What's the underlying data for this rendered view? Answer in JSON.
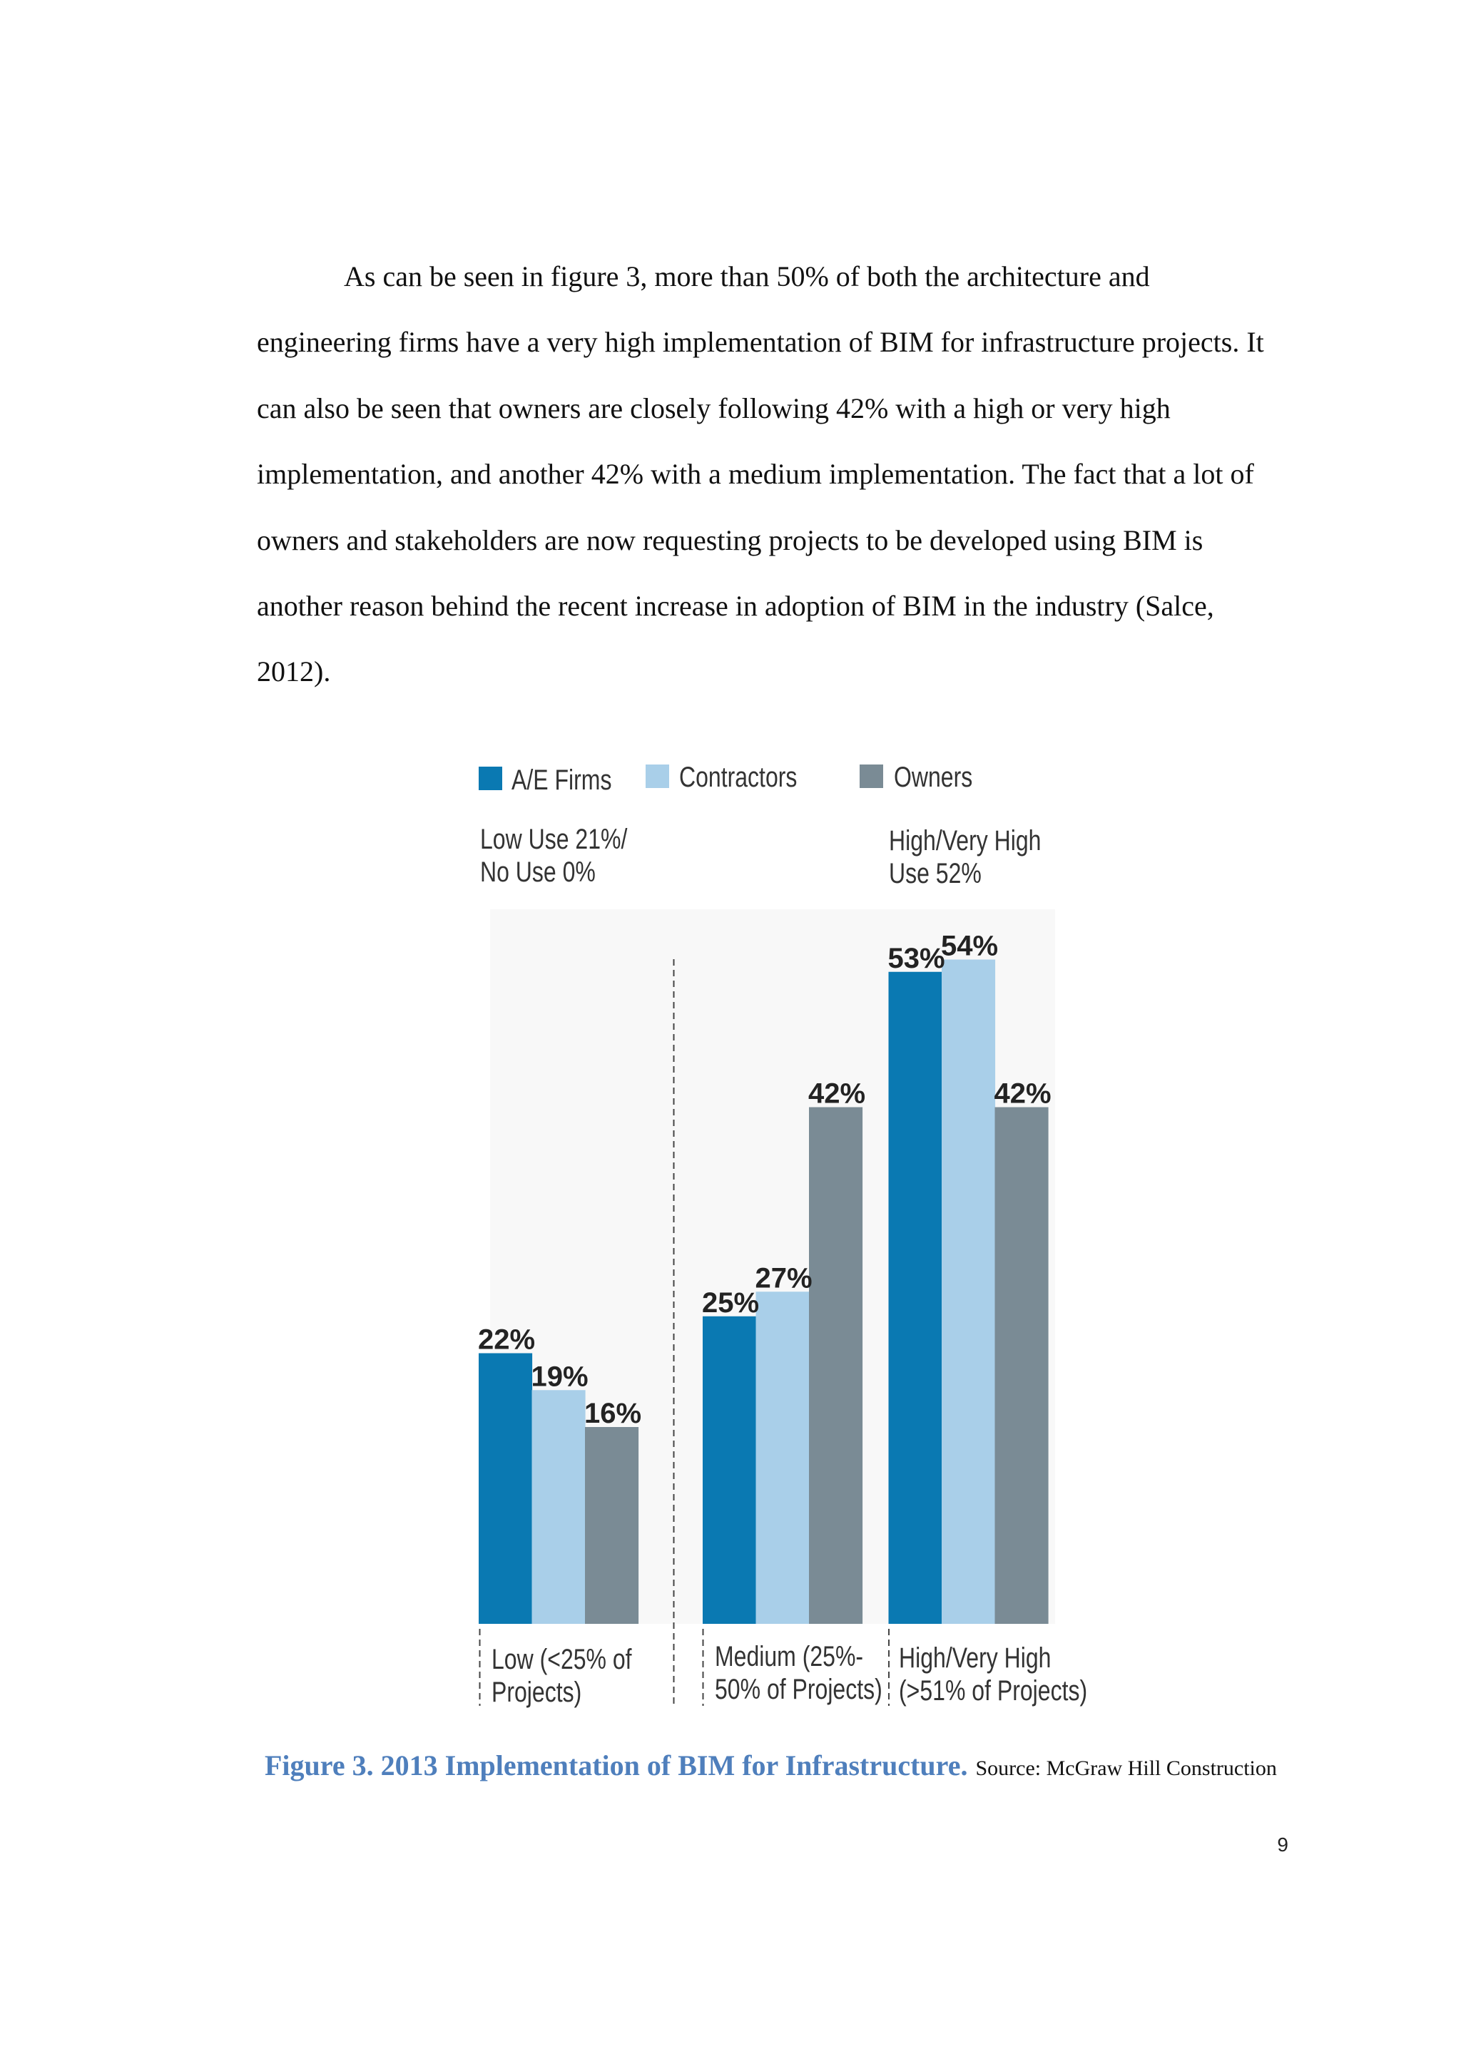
{
  "body": {
    "lines": [
      "As can be seen in figure 3, more than 50% of both the architecture and",
      "engineering firms have a very high implementation of BIM for infrastructure projects. It",
      "can also be seen that owners are closely following 42% with a high or very high",
      "implementation, and another 42% with a medium implementation. The fact that a lot of",
      "owners and stakeholders are now requesting projects to be developed using BIM is",
      "another reason behind the recent increase in adoption of BIM in the industry (Salce,",
      "2012)."
    ]
  },
  "chart_data": {
    "type": "bar",
    "categories": [
      "Low (<25% of\nProjects)",
      "Medium (25%-\n50% of Projects)",
      "High/Very High\n(>51% of Projects)"
    ],
    "series": [
      {
        "name": "A/E Firms",
        "values": [
          22,
          25,
          53
        ],
        "color": "#0a79b2"
      },
      {
        "name": "Contractors",
        "values": [
          19,
          27,
          54
        ],
        "color": "#a9cfe9"
      },
      {
        "name": "Owners",
        "values": [
          16,
          42,
          42
        ],
        "color": "#7a8b95"
      }
    ],
    "value_suffix": "%",
    "annotations": [
      "Low Use 21%/\nNo Use 0%",
      "High/Very High\nUse 52%"
    ],
    "y_axis_visible": false,
    "grid": false,
    "legend_position": "top"
  },
  "figure": {
    "caption": "Figure 3. 2013 Implementation of BIM for Infrastructure.",
    "source": "Source: McGraw Hill Construction",
    "caption_color": "#4f7fbc"
  },
  "page_number": "9"
}
